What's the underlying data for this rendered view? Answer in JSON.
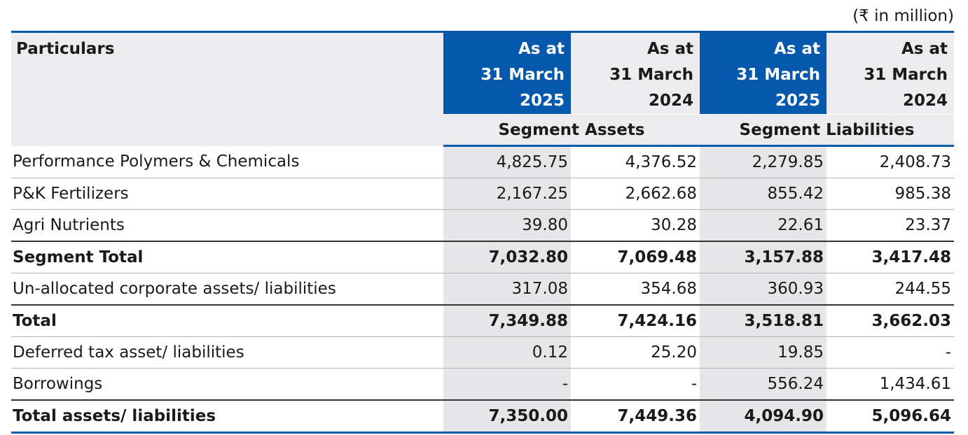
{
  "unit_note": "(₹ in million)",
  "header": {
    "particulars": "Particulars",
    "columns": [
      [
        "As at",
        "31 March",
        "2025"
      ],
      [
        "As at",
        "31 March",
        "2024"
      ],
      [
        "As at",
        "31 March",
        "2025"
      ],
      [
        "As at",
        "31 March",
        "2024"
      ]
    ],
    "groups": [
      "Segment Assets",
      "Segment Liabilities"
    ]
  },
  "rows": [
    {
      "label": "Performance Polymers & Chemicals",
      "values": [
        "4,825.75",
        "4,376.52",
        "2,279.85",
        "2,408.73"
      ],
      "bold": false
    },
    {
      "label": "P&K Fertilizers",
      "values": [
        "2,167.25",
        "2,662.68",
        "855.42",
        "985.38"
      ],
      "bold": false
    },
    {
      "label": "Agri Nutrients",
      "values": [
        "39.80",
        "30.28",
        "22.61",
        "23.37"
      ],
      "bold": false
    },
    {
      "label": "Segment Total",
      "values": [
        "7,032.80",
        "7,069.48",
        "3,157.88",
        "3,417.48"
      ],
      "bold": true
    },
    {
      "label": "Un-allocated corporate assets/ liabilities",
      "values": [
        "317.08",
        "354.68",
        "360.93",
        "244.55"
      ],
      "bold": false
    },
    {
      "label": "Total",
      "values": [
        "7,349.88",
        "7,424.16",
        "3,518.81",
        "3,662.03"
      ],
      "bold": true
    },
    {
      "label": "Deferred tax asset/ liabilities",
      "values": [
        "0.12",
        "25.20",
        "19.85",
        "-"
      ],
      "bold": false
    },
    {
      "label": "Borrowings",
      "values": [
        "-",
        "-",
        "556.24",
        "1,434.61"
      ],
      "bold": false
    },
    {
      "label": "Total assets/ liabilities",
      "values": [
        "7,350.00",
        "7,449.36",
        "4,094.90",
        "5,096.64"
      ],
      "bold": true
    }
  ]
}
